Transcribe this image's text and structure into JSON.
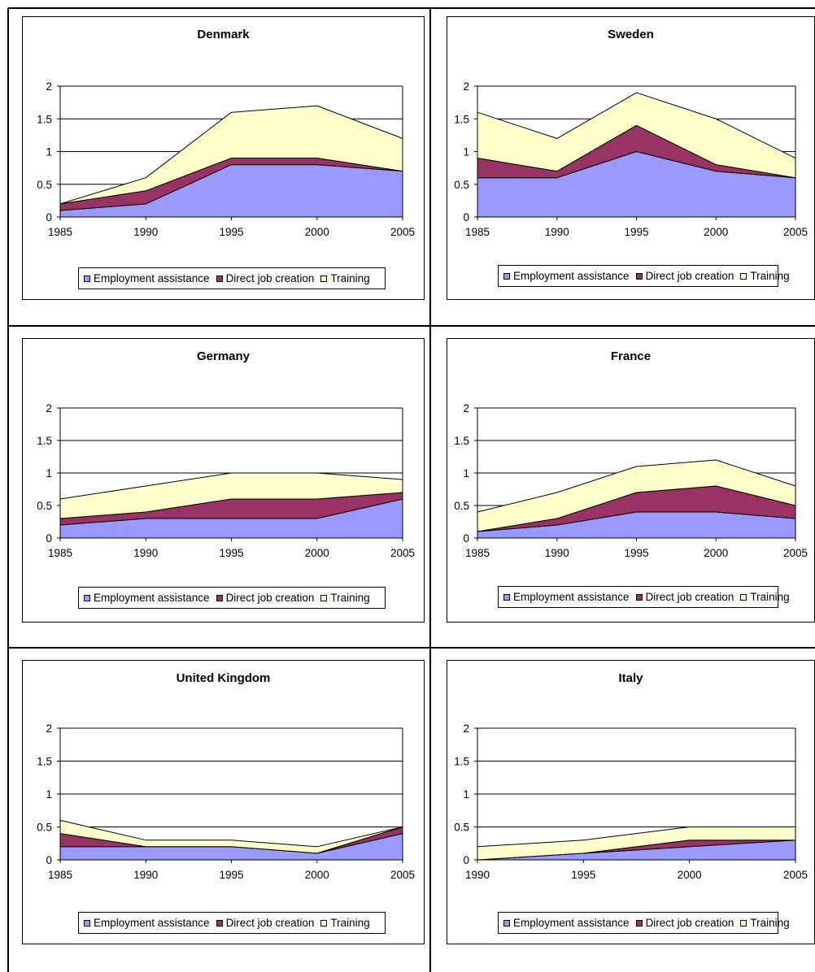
{
  "legend": {
    "series_names": [
      "Employment assistance",
      "Direct job creation",
      "Training"
    ]
  },
  "colors": {
    "employment_assistance": "#9999ff",
    "direct_job_creation": "#993366",
    "training": "#ffffcc",
    "gridline": "#000000"
  },
  "chart_data": [
    {
      "type": "area",
      "stacked": true,
      "title": "Denmark",
      "x": [
        "1985",
        "1990",
        "1995",
        "2000",
        "2005"
      ],
      "ylim": [
        0,
        2
      ],
      "yticks": [
        "0",
        "0.5",
        "1",
        "1.5",
        "2"
      ],
      "grid": true,
      "legend_position": "bottom",
      "series": [
        {
          "name": "Employment assistance",
          "values": [
            0.1,
            0.2,
            0.8,
            0.8,
            0.7
          ]
        },
        {
          "name": "Direct job creation",
          "values": [
            0.1,
            0.2,
            0.1,
            0.1,
            0.0
          ]
        },
        {
          "name": "Training",
          "values": [
            0.0,
            0.2,
            0.7,
            0.8,
            0.5
          ]
        }
      ]
    },
    {
      "type": "area",
      "stacked": true,
      "title": "Sweden",
      "x": [
        "1985",
        "1990",
        "1995",
        "2000",
        "2005"
      ],
      "ylim": [
        0,
        2
      ],
      "yticks": [
        "0",
        "0.5",
        "1",
        "1.5",
        "2"
      ],
      "grid": true,
      "legend_position": "bottom",
      "series": [
        {
          "name": "Employment assistance",
          "values": [
            0.6,
            0.6,
            1.0,
            0.7,
            0.6
          ]
        },
        {
          "name": "Direct job creation",
          "values": [
            0.3,
            0.1,
            0.4,
            0.1,
            0.0
          ]
        },
        {
          "name": "Training",
          "values": [
            0.7,
            0.5,
            0.5,
            0.7,
            0.3
          ]
        }
      ]
    },
    {
      "type": "area",
      "stacked": true,
      "title": "Germany",
      "x": [
        "1985",
        "1990",
        "1995",
        "2000",
        "2005"
      ],
      "ylim": [
        0,
        2
      ],
      "yticks": [
        "0",
        "0.5",
        "1",
        "1.5",
        "2"
      ],
      "grid": true,
      "legend_position": "bottom",
      "series": [
        {
          "name": "Employment assistance",
          "values": [
            0.2,
            0.3,
            0.3,
            0.3,
            0.6
          ]
        },
        {
          "name": "Direct job creation",
          "values": [
            0.1,
            0.1,
            0.3,
            0.3,
            0.1
          ]
        },
        {
          "name": "Training",
          "values": [
            0.3,
            0.4,
            0.4,
            0.4,
            0.2
          ]
        }
      ]
    },
    {
      "type": "area",
      "stacked": true,
      "title": "France",
      "x": [
        "1985",
        "1990",
        "1995",
        "2000",
        "2005"
      ],
      "ylim": [
        0,
        2
      ],
      "yticks": [
        "0",
        "0.5",
        "1",
        "1.5",
        "2"
      ],
      "grid": true,
      "legend_position": "bottom",
      "series": [
        {
          "name": "Employment assistance",
          "values": [
            0.1,
            0.2,
            0.4,
            0.4,
            0.3
          ]
        },
        {
          "name": "Direct job creation",
          "values": [
            0.0,
            0.1,
            0.3,
            0.4,
            0.2
          ]
        },
        {
          "name": "Training",
          "values": [
            0.3,
            0.4,
            0.4,
            0.4,
            0.3
          ]
        }
      ]
    },
    {
      "type": "area",
      "stacked": true,
      "title": "United Kingdom",
      "x": [
        "1985",
        "1990",
        "1995",
        "2000",
        "2005"
      ],
      "ylim": [
        0,
        2
      ],
      "yticks": [
        "0",
        "0.5",
        "1",
        "1.5",
        "2"
      ],
      "grid": true,
      "legend_position": "bottom",
      "series": [
        {
          "name": "Employment assistance",
          "values": [
            0.2,
            0.2,
            0.2,
            0.1,
            0.4
          ]
        },
        {
          "name": "Direct job creation",
          "values": [
            0.2,
            0.0,
            0.0,
            0.0,
            0.1
          ]
        },
        {
          "name": "Training",
          "values": [
            0.2,
            0.1,
            0.1,
            0.1,
            0.0
          ]
        }
      ]
    },
    {
      "type": "area",
      "stacked": true,
      "title": "Italy",
      "x": [
        "1990",
        "1995",
        "2000",
        "2005"
      ],
      "ylim": [
        0,
        2
      ],
      "yticks": [
        "0",
        "0.5",
        "1",
        "1.5",
        "2"
      ],
      "grid": true,
      "legend_position": "bottom",
      "series": [
        {
          "name": "Employment assistance",
          "values": [
            0.0,
            0.1,
            0.2,
            0.3
          ]
        },
        {
          "name": "Direct job creation",
          "values": [
            0.0,
            0.0,
            0.1,
            0.0
          ]
        },
        {
          "name": "Training",
          "values": [
            0.2,
            0.2,
            0.2,
            0.2
          ]
        }
      ]
    }
  ]
}
